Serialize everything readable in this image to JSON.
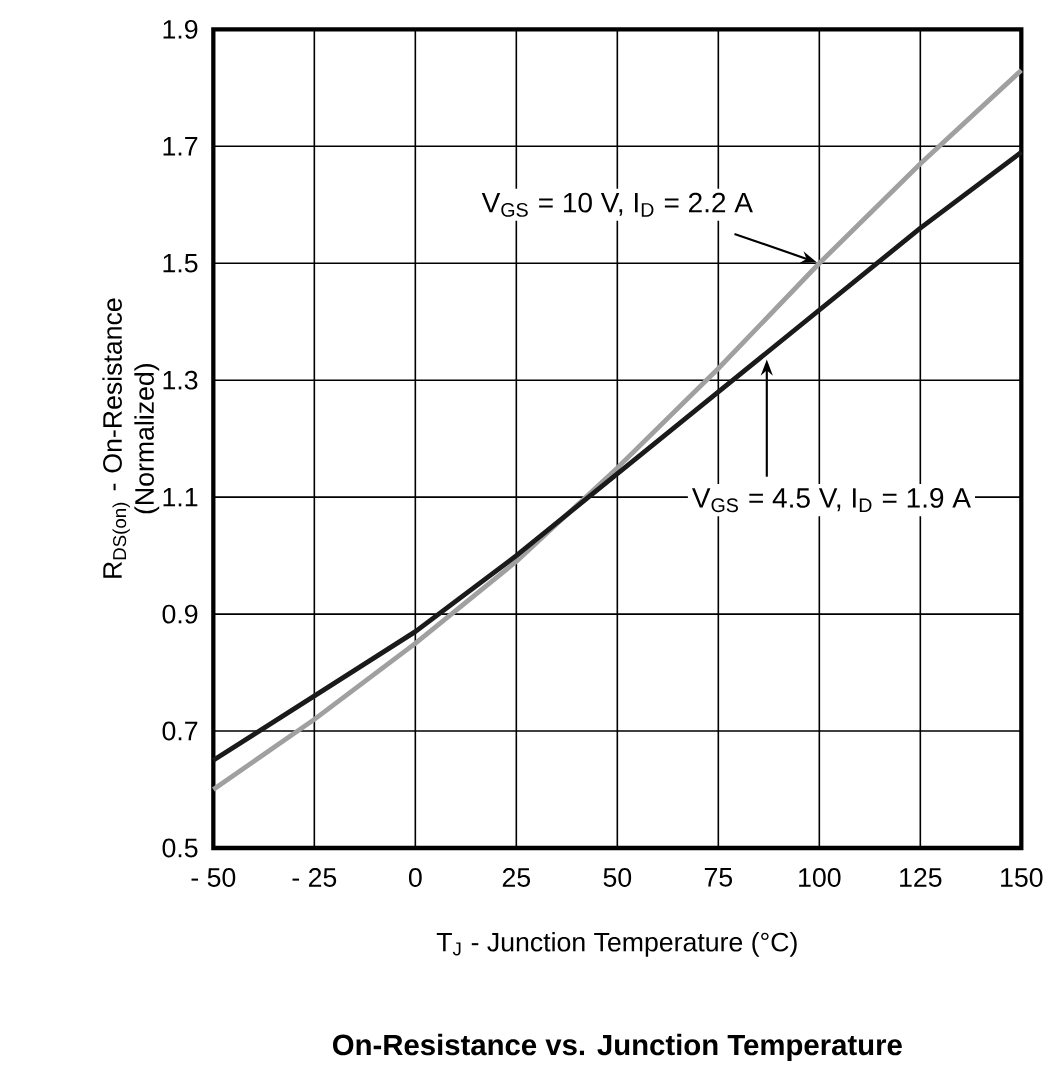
{
  "chart_data": {
    "type": "line",
    "title": "On-Resistance vs. Junction Temperature",
    "xlabel": "T$_{J}$ - Junction Temperature (°C)",
    "ylabel": "R$_{DS(on)}$ - On-Resistance (Normalized)",
    "x": [
      -50,
      -25,
      0,
      25,
      50,
      75,
      100,
      125,
      150
    ],
    "series": [
      {
        "color": "#a0a0a0",
        "values": [
          0.6,
          0.72,
          0.85,
          0.99,
          1.15,
          1.32,
          1.5,
          1.67,
          1.83
        ]
      },
      {
        "color": "#1a1a1a",
        "values": [
          0.65,
          0.76,
          0.87,
          1.0,
          1.14,
          1.28,
          1.42,
          1.56,
          1.69
        ]
      }
    ],
    "annotations": [
      {
        "text": "V$_{GS}$ = 10 V, I$_{D}$ = 2.2 A",
        "x": 100,
        "y": 1.5
      },
      {
        "text": "V$_{GS}$ = 4.5 V, I$_{D}$ = 1.9 A",
        "x": 87,
        "y": 1.34
      }
    ],
    "xlim": [
      -50,
      150
    ],
    "ylim": [
      0.5,
      1.9
    ],
    "xticks": [
      {
        "value": -50,
        "label": "- 50"
      },
      {
        "value": -25,
        "label": "- 25"
      },
      0,
      25,
      50,
      75,
      100,
      125,
      150
    ],
    "yticks": [
      0.5,
      0.7,
      0.9,
      1.1,
      1.3,
      1.5,
      1.7,
      1.9
    ],
    "grid": true,
    "marker": "none",
    "line_style": "solid"
  }
}
